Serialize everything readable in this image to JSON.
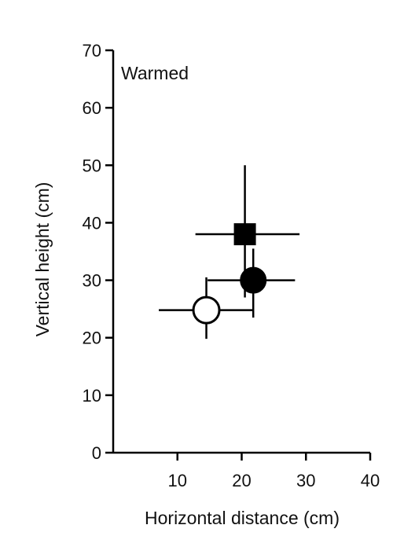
{
  "chart_data": {
    "type": "scatter",
    "annotation": "Warmed",
    "xlabel": "Horizontal distance (cm)",
    "ylabel": "Vertical height (cm)",
    "xlim": [
      0,
      40
    ],
    "ylim": [
      0,
      70
    ],
    "x_ticks": [
      10,
      20,
      30,
      40
    ],
    "y_ticks": [
      0,
      10,
      20,
      30,
      40,
      50,
      60,
      70
    ],
    "grid": false,
    "legend": "none",
    "points": [
      {
        "marker": "square",
        "fill": "#000000",
        "x": 20.5,
        "y": 38,
        "x_err": [
          12.8,
          29.0
        ],
        "y_err": [
          27.0,
          50.0
        ]
      },
      {
        "marker": "circle",
        "fill": "#000000",
        "x": 21.8,
        "y": 30,
        "x_err": [
          14.7,
          28.3
        ],
        "y_err": [
          23.5,
          35.5
        ]
      },
      {
        "marker": "circle",
        "fill": "#ffffff",
        "x": 14.5,
        "y": 24.8,
        "x_err": [
          7.1,
          21.8
        ],
        "y_err": [
          19.8,
          30.5
        ]
      }
    ]
  }
}
